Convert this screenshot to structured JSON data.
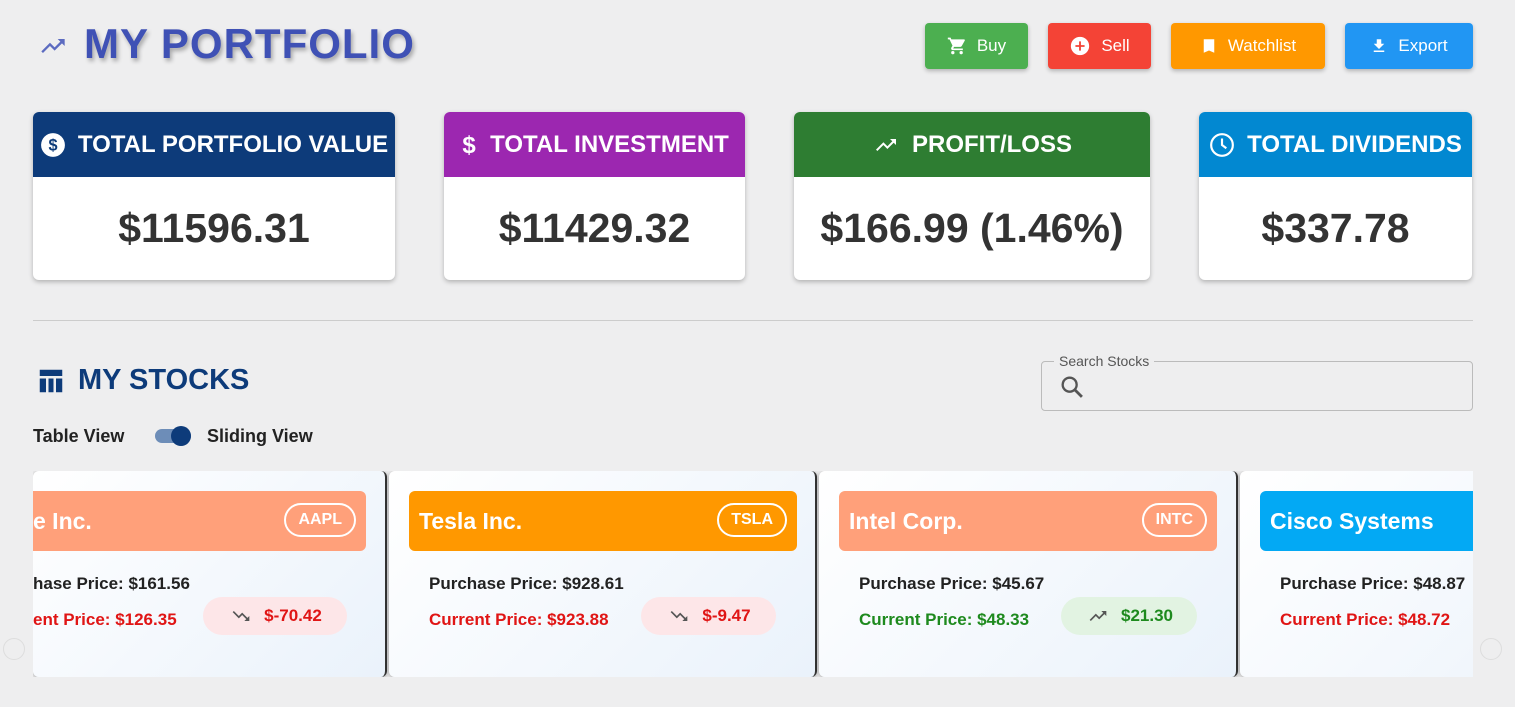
{
  "header": {
    "title": "MY PORTFOLIO"
  },
  "actions": [
    "Buy",
    "Sell",
    "Watchlist",
    "Export"
  ],
  "summary": [
    {
      "label": "TOTAL PORTFOLIO VALUE",
      "value": "$11596.31"
    },
    {
      "label": "TOTAL INVESTMENT",
      "value": "$11429.32"
    },
    {
      "label": "PROFIT/LOSS",
      "value": "$166.99 (1.46%)"
    },
    {
      "label": "TOTAL DIVIDENDS",
      "value": "$337.78"
    }
  ],
  "stocks_section": {
    "title": "MY STOCKS",
    "search_label": "Search Stocks",
    "toggle_left": "Table View",
    "toggle_right": "Sliding View"
  },
  "stocks": [
    {
      "name": "e Inc.",
      "ticker": "AAPL",
      "purchase": "hase Price: $161.56",
      "current": "ent Price: $126.35",
      "change": "$-70.42"
    },
    {
      "name": "Tesla Inc.",
      "ticker": "TSLA",
      "purchase": "Purchase Price: $928.61",
      "current": "Current Price: $923.88",
      "change": "$-9.47"
    },
    {
      "name": "Intel Corp.",
      "ticker": "INTC",
      "purchase": "Purchase Price: $45.67",
      "current": "Current Price: $48.33",
      "change": "$21.30"
    },
    {
      "name": "Cisco Systems",
      "purchase": "Purchase Price: $48.87",
      "current": "Current Price: $48.72"
    }
  ]
}
